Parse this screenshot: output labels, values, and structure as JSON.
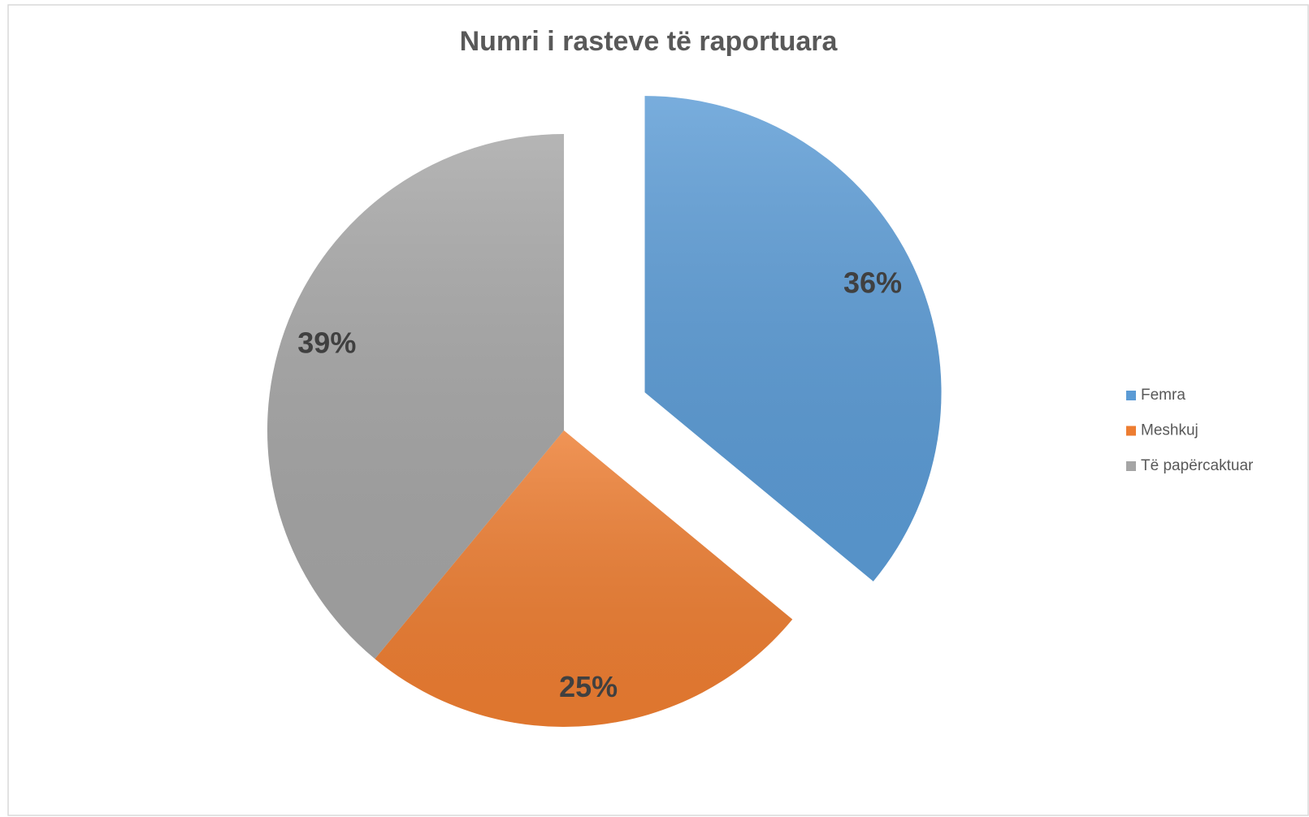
{
  "chart_data": {
    "type": "pie",
    "title": "Numri i rasteve të raportuara",
    "categories": [
      "Femra",
      "Meshkuj",
      "Të papërcaktuar"
    ],
    "values": [
      36,
      25,
      39
    ],
    "value_labels": [
      "36%",
      "25%",
      "39%"
    ],
    "colors": [
      "#5b9bd5",
      "#ed7d31",
      "#a5a5a5"
    ],
    "legend": "right"
  }
}
